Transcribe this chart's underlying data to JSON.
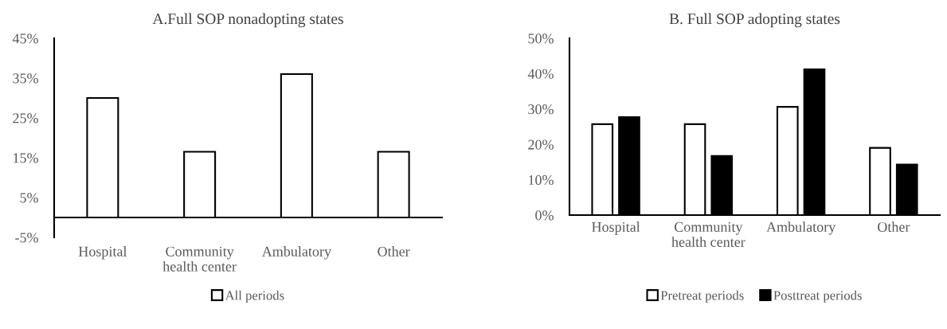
{
  "chart_data": [
    {
      "type": "bar",
      "title": "A.Full SOP nonadopting states",
      "categories": [
        "Hospital",
        "Community\nhealth center",
        "Ambulatory",
        "Other"
      ],
      "series": [
        {
          "name": "All periods",
          "color": "#ffffff",
          "values": [
            30,
            16.5,
            36,
            16.5
          ]
        }
      ],
      "ylim": [
        -5,
        45
      ],
      "yticks": [
        {
          "value": -5,
          "label": "-5%"
        },
        {
          "value": 5,
          "label": "5%"
        },
        {
          "value": 15,
          "label": "15%"
        },
        {
          "value": 25,
          "label": "25%"
        },
        {
          "value": 35,
          "label": "35%"
        },
        {
          "value": 45,
          "label": "45%"
        }
      ],
      "grid": false,
      "legend": "bottom"
    },
    {
      "type": "bar",
      "title": "B. Full SOP adopting states",
      "categories": [
        "Hospital",
        "Community\nhealth center",
        "Ambulatory",
        "Other"
      ],
      "series": [
        {
          "name": "Pretreat periods",
          "color": "#ffffff",
          "values": [
            25.7,
            25.7,
            30.6,
            19
          ]
        },
        {
          "name": "Posttreat periods",
          "color": "#000000",
          "values": [
            27.7,
            16.7,
            41.2,
            14.3
          ]
        }
      ],
      "ylim": [
        0,
        50
      ],
      "yticks": [
        {
          "value": 0,
          "label": "0%"
        },
        {
          "value": 10,
          "label": "10%"
        },
        {
          "value": 20,
          "label": "20%"
        },
        {
          "value": 30,
          "label": "30%"
        },
        {
          "value": 40,
          "label": "40%"
        },
        {
          "value": 50,
          "label": "50%"
        }
      ],
      "grid": false,
      "legend": "bottom"
    }
  ]
}
